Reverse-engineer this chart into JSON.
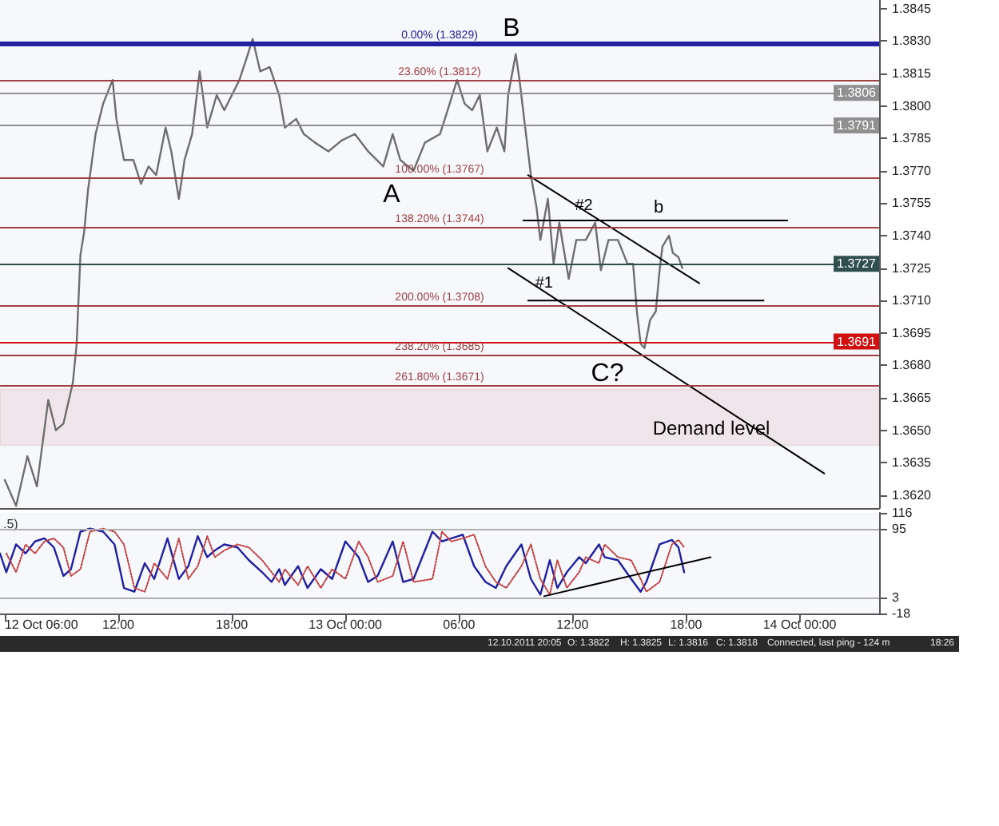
{
  "chart_data": [
    {
      "type": "line",
      "series": [
        {
          "color": "#6e6e6e",
          "x": [
            "2011-10-12T06:00",
            "2011-10-12T06:36",
            "2011-10-12T07:12",
            "2011-10-12T07:42",
            "2011-10-12T08:18",
            "2011-10-12T08:42",
            "2011-10-12T09:06",
            "2011-10-12T09:36",
            "2011-10-12T09:48",
            "2011-10-12T10:00",
            "2011-10-12T10:12",
            "2011-10-12T10:24",
            "2011-10-12T10:48",
            "2011-10-12T11:12",
            "2011-10-12T11:42",
            "2011-10-12T11:54",
            "2011-10-12T12:18",
            "2011-10-12T12:48",
            "2011-10-12T13:12",
            "2011-10-12T13:36",
            "2011-10-12T14:00",
            "2011-10-12T14:30",
            "2011-10-12T14:48",
            "2011-10-12T15:12",
            "2011-10-12T15:30",
            "2011-10-12T15:54",
            "2011-10-12T16:18",
            "2011-10-12T16:42",
            "2011-10-12T17:12",
            "2011-10-12T17:36",
            "2011-10-12T18:24",
            "2011-10-12T18:51",
            "2011-10-12T19:06",
            "2011-10-12T19:30",
            "2011-10-12T20:00",
            "2011-10-12T20:30",
            "2011-10-12T20:48",
            "2011-10-12T21:24",
            "2011-10-12T21:48",
            "2011-10-12T22:24",
            "2011-10-12T23:06",
            "2011-10-12T23:48",
            "2011-10-13T00:30",
            "2011-10-13T01:12",
            "2011-10-13T02:00",
            "2011-10-13T02:30",
            "2011-10-13T02:54",
            "2011-10-13T03:36",
            "2011-10-13T04:12",
            "2011-10-13T05:00",
            "2011-10-13T05:24",
            "2011-10-13T05:54",
            "2011-10-13T06:18",
            "2011-10-13T06:42",
            "2011-10-13T07:06",
            "2011-10-13T07:30",
            "2011-10-13T08:00",
            "2011-10-13T08:24",
            "2011-10-13T08:36",
            "2011-10-13T09:00",
            "2011-10-13T09:12",
            "2011-10-13T09:30",
            "2011-10-13T09:48",
            "2011-10-13T10:06",
            "2011-10-13T10:18",
            "2011-10-13T10:42",
            "2011-10-13T11:00",
            "2011-10-13T11:18",
            "2011-10-13T11:48",
            "2011-10-13T12:12",
            "2011-10-13T12:42",
            "2011-10-13T13:12",
            "2011-10-13T13:30",
            "2011-10-13T13:54",
            "2011-10-13T14:24",
            "2011-10-13T14:54",
            "2011-10-13T15:12",
            "2011-10-13T15:24",
            "2011-10-13T15:36",
            "2011-10-13T15:48",
            "2011-10-13T16:06",
            "2011-10-13T16:24",
            "2011-10-13T16:36",
            "2011-10-13T16:45",
            "2011-10-13T17:06",
            "2011-10-13T17:18",
            "2011-10-13T17:36",
            "2011-10-13T17:48"
          ],
          "values": [
            1.3627,
            1.3615,
            1.3638,
            1.3624,
            1.3664,
            1.365,
            1.3653,
            1.3672,
            1.369,
            1.3731,
            1.3742,
            1.3761,
            1.3787,
            1.3801,
            1.3812,
            1.3794,
            1.3775,
            1.3775,
            1.3764,
            1.3772,
            1.3768,
            1.379,
            1.3779,
            1.3757,
            1.3775,
            1.3787,
            1.3816,
            1.379,
            1.3805,
            1.3798,
            1.3812,
            1.3824,
            1.3831,
            1.3816,
            1.3818,
            1.3805,
            1.379,
            1.3794,
            1.3787,
            1.3783,
            1.3779,
            1.3784,
            1.3787,
            1.3779,
            1.3772,
            1.3787,
            1.3775,
            1.377,
            1.3783,
            1.3787,
            1.3798,
            1.3812,
            1.3801,
            1.3798,
            1.3805,
            1.3779,
            1.379,
            1.3779,
            1.3805,
            1.3824,
            1.3812,
            1.379,
            1.3768,
            1.3753,
            1.3738,
            1.3757,
            1.3727,
            1.3746,
            1.372,
            1.3738,
            1.3738,
            1.3746,
            1.3724,
            1.3738,
            1.3738,
            1.3727,
            1.3727,
            1.3705,
            1.369,
            1.3688,
            1.3701,
            1.3705,
            1.3724,
            1.3735,
            1.374,
            1.3732,
            1.373,
            1.3725
          ]
        },
        {
          "type": "line",
          "color": "#000000",
          "x": [
            "2011-10-13T08:36",
            "2011-10-14T01:18"
          ],
          "values": [
            1.3725,
            1.363
          ]
        },
        {
          "type": "line",
          "color": "#000000",
          "x": [
            "2011-10-13T09:39",
            "2011-10-13T18:42"
          ],
          "values": [
            1.3768,
            1.3718
          ]
        },
        {
          "type": "line",
          "color": "#000000",
          "x": [
            "2011-10-13T09:24",
            "2011-10-13T23:21"
          ],
          "values": [
            1.3747,
            1.3747
          ]
        },
        {
          "type": "line",
          "color": "#000000",
          "x": [
            "2011-10-13T09:39",
            "2011-10-13T22:06"
          ],
          "values": [
            1.371,
            1.371
          ]
        }
      ],
      "xlim": [
        "2011-10-12T05:45",
        "2011-10-14T04:12"
      ],
      "ylim": [
        1.3614,
        1.3849
      ],
      "yticks": [
        {
          "value": 1.362,
          "label": "1.3620"
        },
        1.3635,
        {
          "value": 1.365,
          "label": "1.3650"
        },
        1.3665,
        {
          "value": 1.368,
          "label": "1.3680"
        },
        1.3695,
        {
          "value": 1.371,
          "label": "1.3710"
        },
        1.3725,
        {
          "value": 1.374,
          "label": "1.3740"
        },
        1.3755,
        {
          "value": 1.377,
          "label": "1.3770"
        },
        1.3785,
        {
          "value": 1.38,
          "label": "1.3800"
        },
        1.3815,
        {
          "value": 1.383,
          "label": "1.3830"
        },
        1.3845
      ],
      "tick_labels": "y",
      "grid": false,
      "marker": "none",
      "ref_lines": [
        {
          "axis": "y",
          "value": 1.3829,
          "label": "0.00% (1.3829)",
          "color": "#2020a0"
        },
        {
          "axis": "y",
          "value": 1.3812,
          "label": "23.60% (1.3812)",
          "color": "#a04040"
        },
        {
          "axis": "y",
          "value": 1.3806,
          "label": "1.3806",
          "color": "#909090"
        },
        {
          "axis": "y",
          "value": 1.3791,
          "label": "1.3791",
          "color": "#909090"
        },
        {
          "axis": "y",
          "value": 1.3767,
          "label": "100.00% (1.3767)",
          "color": "#a04040"
        },
        {
          "axis": "y",
          "value": 1.3744,
          "label": "138.20% (1.3744)",
          "color": "#a04040"
        },
        {
          "axis": "y",
          "value": 1.3727,
          "label": "1.3727",
          "color": "#2f4f4f"
        },
        {
          "axis": "y",
          "value": 1.3708,
          "label": "200.00% (1.3708)",
          "color": "#a04040"
        },
        {
          "axis": "y",
          "value": 1.3691,
          "label": "1.3691",
          "color": "#d01010"
        },
        {
          "axis": "y",
          "value": 1.3685,
          "label": "238.20% (1.3685)",
          "color": "#a04040"
        },
        {
          "axis": "y",
          "value": 1.3671,
          "label": "261.80% (1.3671)",
          "color": "#a04040"
        }
      ],
      "bands": [
        {
          "axis": "y",
          "from": 1.3643,
          "to": 1.3669,
          "color": "#8b1a1a"
        }
      ],
      "annotations": [
        "A",
        "B",
        {
          "text": "#2",
          "x": "2011-10-13T12:36",
          "y": 1.375
        },
        {
          "text": "#1",
          "x": "2011-10-13T10:30",
          "y": 1.3714
        },
        "b",
        "C?",
        "Demand level"
      ]
    },
    {
      "type": "line",
      "series": [
        {
          "color": "#2020a0",
          "line_style": "solid",
          "x": [
            "2011-10-12T05:45",
            "2011-10-12T06:05",
            "2011-10-12T06:36",
            "2011-10-12T07:06",
            "2011-10-12T07:36",
            "2011-10-12T08:06",
            "2011-10-12T08:36",
            "2011-10-12T09:06",
            "2011-10-12T09:30",
            "2011-10-12T10:00",
            "2011-10-12T10:30",
            "2011-10-12T11:12",
            "2011-10-12T11:48",
            "2011-10-12T12:18",
            "2011-10-12T12:51",
            "2011-10-12T13:24",
            "2011-10-12T13:54",
            "2011-10-12T14:36",
            "2011-10-12T15:12",
            "2011-10-12T15:42",
            "2011-10-12T16:12",
            "2011-10-12T16:42",
            "2011-10-12T17:06",
            "2011-10-12T17:36",
            "2011-10-12T18:18",
            "2011-10-12T18:54",
            "2011-10-12T19:36",
            "2011-10-12T20:06",
            "2011-10-12T20:30",
            "2011-10-12T20:48",
            "2011-10-12T21:30",
            "2011-10-12T22:00",
            "2011-10-12T22:42",
            "2011-10-12T23:18",
            "2011-10-13T00:00",
            "2011-10-13T00:42",
            "2011-10-13T01:12",
            "2011-10-13T01:42",
            "2011-10-13T02:30",
            "2011-10-13T03:03",
            "2011-10-13T03:36",
            "2011-10-13T04:36",
            "2011-10-13T05:06",
            "2011-10-13T05:36",
            "2011-10-13T06:12",
            "2011-10-13T06:48",
            "2011-10-13T07:24",
            "2011-10-13T07:57",
            "2011-10-13T08:30",
            "2011-10-13T09:18",
            "2011-10-13T09:48",
            "2011-10-13T10:18",
            "2011-10-13T10:48",
            "2011-10-13T11:12",
            "2011-10-13T11:42",
            "2011-10-13T12:21",
            "2011-10-13T12:42",
            "2011-10-13T13:24",
            "2011-10-13T13:42",
            "2011-10-13T14:24",
            "2011-10-13T15:06",
            "2011-10-13T15:36",
            "2011-10-13T15:54",
            "2011-10-13T16:36",
            "2011-10-13T17:15",
            "2011-10-13T17:36",
            "2011-10-13T17:54"
          ],
          "values": [
            62,
            37,
            74,
            62,
            78,
            82,
            70,
            32,
            41,
            91,
            95,
            91,
            74,
            16,
            11,
            49,
            28,
            82,
            28,
            45,
            85,
            57,
            66,
            74,
            70,
            53,
            37,
            24,
            41,
            20,
            45,
            16,
            41,
            28,
            78,
            57,
            24,
            32,
            78,
            24,
            28,
            91,
            78,
            82,
            87,
            45,
            24,
            16,
            45,
            74,
            28,
            7,
            53,
            16,
            37,
            57,
            49,
            74,
            57,
            53,
            28,
            11,
            24,
            74,
            80,
            70,
            37
          ]
        },
        {
          "color": "#c04040",
          "line_style": "dotted",
          "x": [
            "2011-10-12T06:05",
            "2011-10-12T06:36",
            "2011-10-12T07:06",
            "2011-10-12T07:36",
            "2011-10-12T08:06",
            "2011-10-12T08:36",
            "2011-10-12T09:06",
            "2011-10-12T09:30",
            "2011-10-12T10:00",
            "2011-10-12T10:30",
            "2011-10-12T11:12",
            "2011-10-12T11:48",
            "2011-10-12T12:18",
            "2011-10-12T12:51",
            "2011-10-12T13:24",
            "2011-10-12T13:54",
            "2011-10-12T14:36",
            "2011-10-12T15:12",
            "2011-10-12T15:42",
            "2011-10-12T16:12",
            "2011-10-12T16:42",
            "2011-10-12T17:06",
            "2011-10-12T17:36",
            "2011-10-12T18:18",
            "2011-10-12T18:54",
            "2011-10-12T19:36",
            "2011-10-12T20:06",
            "2011-10-12T20:30",
            "2011-10-12T20:48",
            "2011-10-12T21:30",
            "2011-10-12T22:00",
            "2011-10-12T22:42",
            "2011-10-12T23:18",
            "2011-10-13T00:00",
            "2011-10-13T00:42",
            "2011-10-13T01:12",
            "2011-10-13T01:42",
            "2011-10-13T02:30",
            "2011-10-13T03:03",
            "2011-10-13T03:36",
            "2011-10-13T04:36",
            "2011-10-13T05:06",
            "2011-10-13T05:36",
            "2011-10-13T06:12",
            "2011-10-13T06:48",
            "2011-10-13T07:24",
            "2011-10-13T07:57",
            "2011-10-13T08:30",
            "2011-10-13T09:18",
            "2011-10-13T09:48",
            "2011-10-13T10:18",
            "2011-10-13T10:48",
            "2011-10-13T11:12",
            "2011-10-13T11:42",
            "2011-10-13T12:21",
            "2011-10-13T12:42",
            "2011-10-13T13:24",
            "2011-10-13T13:42",
            "2011-10-13T14:24",
            "2011-10-13T15:06",
            "2011-10-13T15:36",
            "2011-10-13T15:54",
            "2011-10-13T16:36",
            "2011-10-13T17:15",
            "2011-10-13T17:36",
            "2011-10-13T17:54"
          ],
          "values": [
            62,
            37,
            74,
            62,
            78,
            82,
            70,
            32,
            41,
            91,
            95,
            91,
            74,
            16,
            11,
            49,
            28,
            82,
            28,
            45,
            85,
            57,
            66,
            74,
            70,
            53,
            37,
            24,
            41,
            20,
            45,
            16,
            41,
            28,
            78,
            57,
            24,
            32,
            78,
            24,
            28,
            91,
            78,
            82,
            87,
            45,
            24,
            16,
            45,
            74,
            28,
            7,
            53,
            16,
            37,
            57,
            49,
            74,
            57,
            53,
            28,
            11,
            24,
            74,
            80,
            70
          ]
        },
        {
          "type": "line",
          "color": "#000000",
          "line_style": "solid",
          "x": [
            "2011-10-13T10:30",
            "2011-10-13T19:18"
          ],
          "values": [
            5,
            57
          ]
        }
      ],
      "xlim": [
        "2011-10-12T05:45",
        "2011-10-14T04:12"
      ],
      "xticks": [
        {
          "value": "2011-10-12T06:00",
          "label": "12 Oct 06:00"
        },
        {
          "value": "2011-10-12T12:00",
          "label": "12:00"
        },
        {
          "value": "2011-10-12T18:00",
          "label": "18:00"
        },
        {
          "value": "2011-10-13T00:00",
          "label": "13 Oct 00:00"
        },
        {
          "value": "2011-10-13T06:00",
          "label": "06:00"
        },
        {
          "value": "2011-10-13T12:00",
          "label": "12:00"
        },
        {
          "value": "2011-10-13T18:00",
          "label": "18:00"
        },
        {
          "value": "2011-10-14T00:00",
          "label": "14 Oct 00:00"
        }
      ],
      "ylim": [
        -18,
        116
      ],
      "yticks": [
        -18,
        3,
        95,
        116
      ],
      "grid": false,
      "marker": "none",
      "ref_lines": [
        {
          "axis": "y",
          "value": 95,
          "color": "#b0b0b0"
        },
        {
          "axis": "y",
          "value": 3,
          "color": "#b0b0b0"
        }
      ],
      "annotations": [
        ".5)",
        "12.10.2011 20:05",
        "O: 1.3822",
        "H: 1.3825",
        "L: 1.3816",
        "C: 1.3818",
        "Connected, last ping - 124 m",
        "18:26"
      ]
    }
  ]
}
